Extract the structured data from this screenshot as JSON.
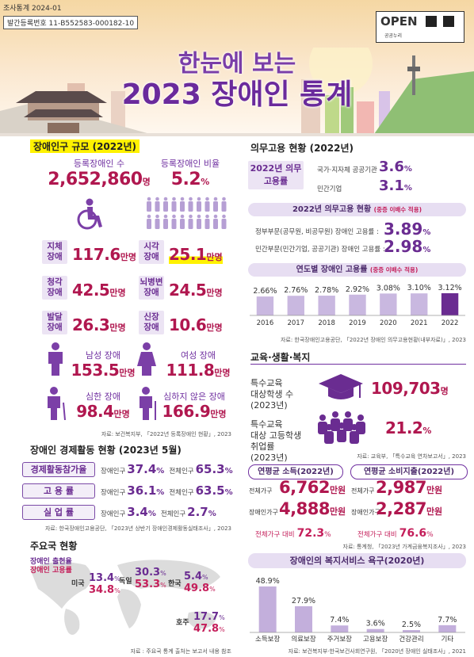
{
  "header": {
    "survey": "조사통계 2024-01",
    "reg_no": "발간등록번호 11-B552583-000182-10",
    "open_badge": "OPEN",
    "open_sub": "공공누리",
    "title_line1": "한눈에 보는",
    "title_line2": "2023 장애인 통계"
  },
  "population": {
    "title": "장애인구 규모 (2022년)",
    "registered": {
      "label": "등록장애인 수",
      "value": "2,652,860",
      "unit": "명"
    },
    "ratio": {
      "label": "등록장애인 비율",
      "value": "5.2",
      "unit": "%"
    },
    "unit": "만명",
    "types": [
      {
        "label": "지체 장애",
        "value": "117.6"
      },
      {
        "label": "시각 장애",
        "value": "25.1"
      },
      {
        "label": "청각 장애",
        "value": "42.5"
      },
      {
        "label": "뇌병변 장애",
        "value": "24.5"
      },
      {
        "label": "발달 장애",
        "value": "26.3"
      },
      {
        "label": "신장 장애",
        "value": "10.6"
      }
    ],
    "groups": [
      {
        "label": "남성 장애",
        "value": "153.5"
      },
      {
        "label": "여성 장애",
        "value": "111.8"
      },
      {
        "label": "심한 장애",
        "value": "98.4"
      },
      {
        "label": "심하지 않은 장애",
        "value": "166.9"
      }
    ],
    "source": "자료: 보건복지부, 「2022년 등록장애인 현황」, 2023"
  },
  "economic": {
    "title": "장애인 경제활동 현황 (2023년 5월)",
    "disabled_label": "장애인구",
    "total_label": "전체인구",
    "unit": "%",
    "rows": [
      {
        "label": "경제활동참가율",
        "disabled": "37.4",
        "total": "65.3"
      },
      {
        "label": "고 용 률",
        "disabled": "36.1",
        "total": "63.5"
      },
      {
        "label": "실 업 률",
        "disabled": "3.4",
        "total": "2.7"
      }
    ],
    "source": "자료: 한국장애인고용공단, 「2023년 상반기 장애인경제활동실태조사」, 2023"
  },
  "countries": {
    "title": "주요국 현황",
    "legend": [
      "장애인 출현율",
      "장애인 고용률"
    ],
    "unit": "%",
    "items": [
      {
        "name": "미국",
        "prevalence": "13.4",
        "employment": "34.8"
      },
      {
        "name": "독일",
        "prevalence": "30.3",
        "employment": "53.3"
      },
      {
        "name": "한국",
        "prevalence": "5.4",
        "employment": "49.8"
      },
      {
        "name": "호주",
        "prevalence": "17.7",
        "employment": "47.8"
      }
    ],
    "source": "자료 : 주요국 통계 출처는 보고서 내용 참조"
  },
  "mandatory": {
    "title": "의무고용 현황 (2022년)",
    "box": "2022년 의무고용률",
    "unit": "%",
    "rows": [
      {
        "label": "국가·지자체 공공기관",
        "value": "3.6"
      },
      {
        "label": "민간기업",
        "value": "3.1"
      }
    ],
    "status_title": "2022년 의무고용 현황",
    "status_note": "(중증 이배수 적용)",
    "status_rows": [
      {
        "label": "정부부문(공무원, 비공무원) 장애인 고용률 :",
        "value": "3.89"
      },
      {
        "label": "민간부문(민간기업, 공공기관) 장애인 고용률 :",
        "value": "2.98"
      }
    ],
    "source": "자료: 한국장애인고용공단, 「2022년 장애인 의무고용현황(내부자료)」, 2023"
  },
  "education": {
    "title": "교육·생활·복지",
    "items": [
      {
        "label": "특수교육\n대상학생 수",
        "year": "(2023년)",
        "value": "109,703",
        "unit": "명"
      },
      {
        "label": "특수교육\n대상 고등학생\n취업률",
        "year": "(2023년)",
        "value": "21.2",
        "unit": "%"
      }
    ],
    "source": "자료: 교육부, 「특수교육 연차보고서」, 2023"
  },
  "household": {
    "unit": "만원",
    "ratio_unit": "%",
    "panels": [
      {
        "title": "연평균 소득(2022년)",
        "rows": [
          {
            "label": "전체가구",
            "value": "6,762"
          },
          {
            "label": "장애인가구",
            "value": "4,888"
          }
        ],
        "ratio_label": "전체가구 대비",
        "ratio": "72.3"
      },
      {
        "title": "연평균 소비지출(2022년)",
        "rows": [
          {
            "label": "전체가구",
            "value": "2,987"
          },
          {
            "label": "장애인가구",
            "value": "2,287"
          }
        ],
        "ratio_label": "전체가구 대비",
        "ratio": "76.6"
      }
    ],
    "source": "자료: 통계청, 「2023년 가계금융복지조사」, 2023"
  },
  "chart_data": [
    {
      "type": "bar",
      "title": "연도별 장애인 고용률",
      "subtitle": "(중증 이배수 적용)",
      "categories": [
        "2016",
        "2017",
        "2018",
        "2019",
        "2020",
        "2021",
        "2022"
      ],
      "values": [
        2.66,
        2.76,
        2.78,
        2.92,
        3.08,
        3.1,
        3.12
      ],
      "value_labels": [
        "2.66%",
        "2.76%",
        "2.78%",
        "2.92%",
        "3.08%",
        "3.10%",
        "3.12%"
      ],
      "colors": [
        "#c9b8e0",
        "#c9b8e0",
        "#c9b8e0",
        "#c9b8e0",
        "#c9b8e0",
        "#c9b8e0",
        "#6a2c91"
      ]
    },
    {
      "type": "bar",
      "title": "장애인의 복지서비스 욕구(2020년)",
      "categories": [
        "소득보장",
        "의료보장",
        "주거보장",
        "고용보장",
        "건강관리",
        "기타"
      ],
      "values": [
        48.9,
        27.9,
        7.4,
        3.6,
        2.5,
        7.7
      ],
      "value_labels": [
        "48.9%",
        "27.9%",
        "7.4%",
        "3.6%",
        "2.5%",
        "7.7%"
      ],
      "colors": [
        "#c3afdc",
        "#c3afdc",
        "#c3afdc",
        "#c3afdc",
        "#c3afdc",
        "#c3afdc"
      ],
      "source": "자료: 보건복지부·한국보건사회연구원, 「2020년 장애인 실태조사」, 2021"
    }
  ]
}
